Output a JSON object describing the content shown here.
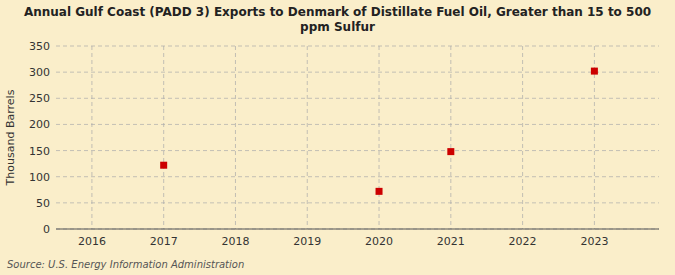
{
  "chart_data": {
    "type": "scatter",
    "title": "Annual Gulf Coast (PADD 3) Exports to Denmark of Distillate Fuel Oil, Greater than 15 to 500\nppm Sulfur",
    "y_label": "Thousand Barrels",
    "source": "Source: U.S. Energy Information Administration",
    "x": [
      2017,
      2020,
      2021,
      2023
    ],
    "values": [
      122,
      72,
      148,
      302
    ],
    "color": "#cc0000",
    "marker": "square",
    "xlim": [
      2015.5,
      2023.9
    ],
    "ylim": [
      0,
      350
    ],
    "xticks": [
      2016,
      2017,
      2018,
      2019,
      2020,
      2021,
      2022,
      2023
    ],
    "yticks": [
      0,
      50,
      100,
      150,
      200,
      250,
      300,
      350
    ],
    "grid": true
  }
}
